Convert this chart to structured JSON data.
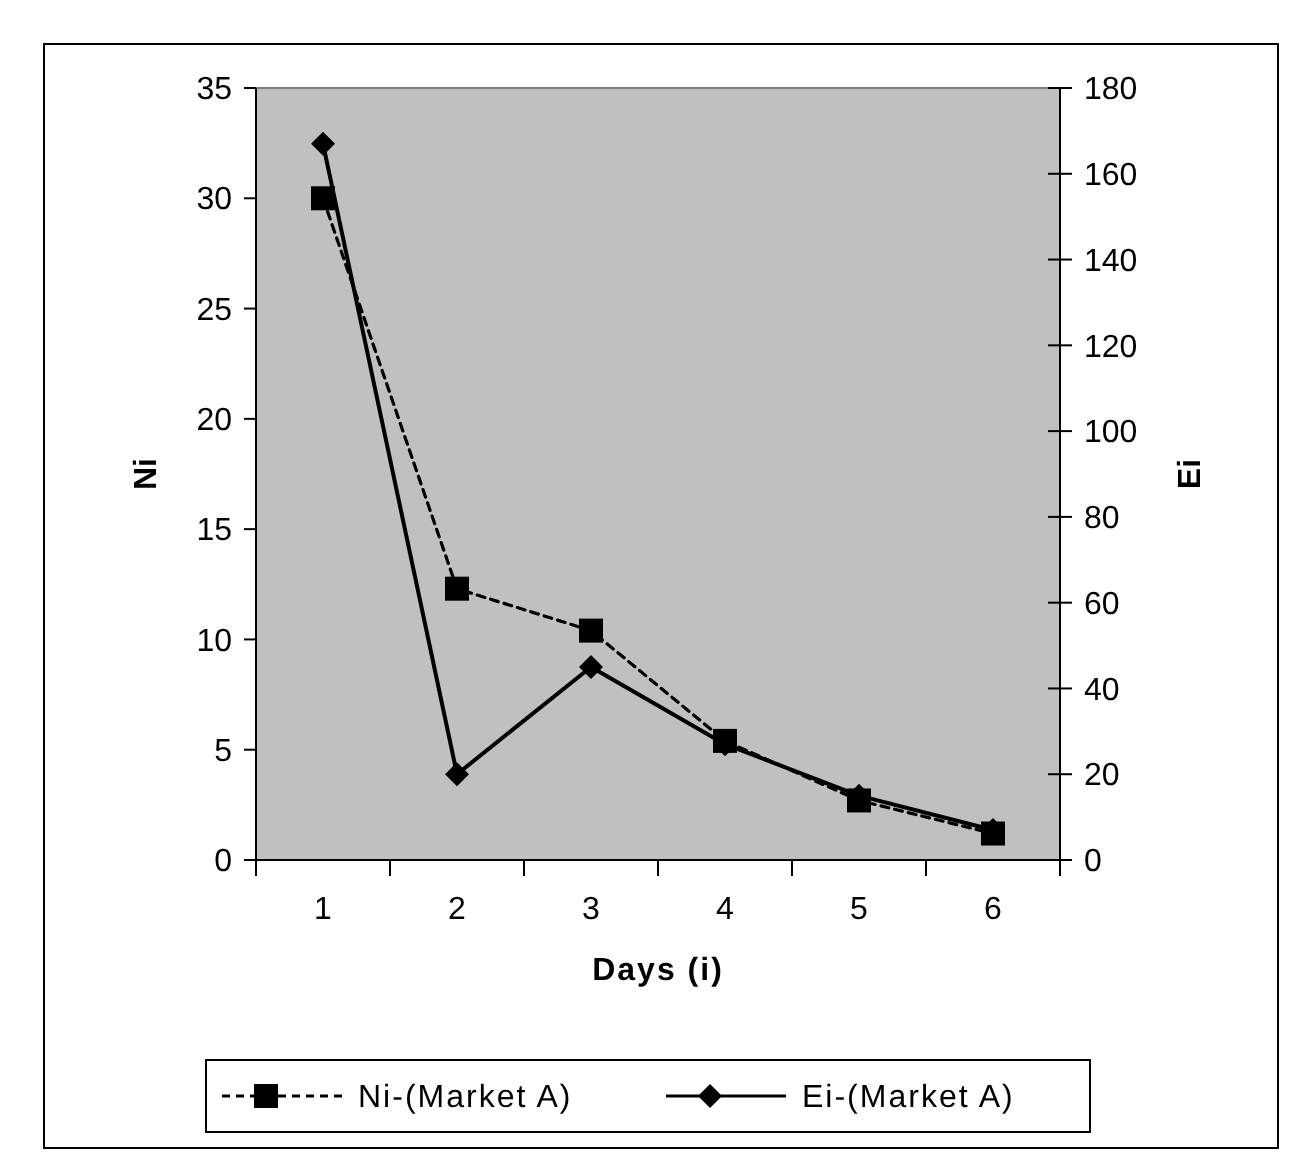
{
  "chart_data": {
    "type": "line",
    "xlabel": "Days (i)",
    "ylabel": "Ni",
    "y2label": "Ei",
    "categories": [
      "1",
      "2",
      "3",
      "4",
      "5",
      "6"
    ],
    "series": [
      {
        "name": "Ni-(Market A)",
        "color": "#000000",
        "values": [
          30.0,
          12.3,
          10.4,
          5.4,
          2.7,
          1.2
        ],
        "marker": "square",
        "line_style": "dashed"
      },
      {
        "name": "Ei-(Market A)",
        "color": "#000000",
        "values": [
          167,
          20,
          45,
          27,
          15,
          7
        ],
        "marker": "diamond",
        "line_style": "solid",
        "axis": "y2"
      }
    ],
    "ylim": [
      0,
      35
    ],
    "yticks": [
      0,
      5,
      10,
      15,
      20,
      25,
      30,
      35
    ],
    "y2lim": [
      0,
      180
    ],
    "y2ticks": [
      0,
      20,
      40,
      60,
      80,
      100,
      120,
      140,
      160,
      180
    ],
    "grid": false,
    "legend": "bottom"
  }
}
